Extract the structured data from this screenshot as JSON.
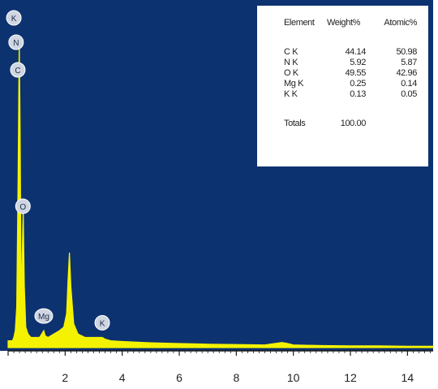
{
  "chart_data": {
    "type": "line",
    "x_ticks": [
      "2",
      "4",
      "6",
      "8",
      "10",
      "12",
      "14"
    ],
    "x_tick_values": [
      2,
      4,
      6,
      8,
      10,
      12,
      14
    ],
    "xlim": [
      0,
      14.9
    ],
    "ylim": [
      0,
      1
    ],
    "colors": {
      "background": "#0d3270",
      "spectrum": "#f4f200",
      "label_bubble": "#cfd6e2"
    },
    "series": [
      {
        "x": [
          0,
          0.15,
          0.2,
          0.25,
          0.3,
          0.35,
          0.39,
          0.42,
          0.46,
          0.5,
          0.53,
          0.57,
          0.62,
          0.66,
          0.7,
          0.8,
          1.0,
          1.1,
          1.25,
          1.3,
          1.4,
          1.6,
          1.8,
          1.95,
          2.05,
          2.1,
          2.15,
          2.2,
          2.3,
          2.45,
          2.7,
          3.0,
          3.3,
          3.4,
          3.6,
          4.0,
          5.0,
          6.0,
          7.0,
          8.0,
          9.0,
          9.6,
          9.8,
          10.0,
          11.0,
          12.0,
          13.0,
          14.0,
          14.9
        ],
        "y": [
          0.02,
          0.02,
          0.03,
          0.05,
          0.12,
          0.5,
          0.92,
          0.65,
          0.12,
          0.3,
          0.41,
          0.18,
          0.06,
          0.05,
          0.04,
          0.03,
          0.03,
          0.03,
          0.05,
          0.035,
          0.03,
          0.04,
          0.05,
          0.06,
          0.1,
          0.2,
          0.28,
          0.18,
          0.07,
          0.04,
          0.03,
          0.03,
          0.03,
          0.025,
          0.02,
          0.018,
          0.014,
          0.012,
          0.01,
          0.009,
          0.008,
          0.015,
          0.012,
          0.008,
          0.006,
          0.005,
          0.005,
          0.004,
          0.004
        ]
      }
    ],
    "peak_labels": [
      {
        "text": "K",
        "x": 0.2
      },
      {
        "text": "N",
        "x": 0.28
      },
      {
        "text": "C",
        "x": 0.34
      },
      {
        "text": "O",
        "x": 0.52
      },
      {
        "text": "Mg",
        "x": 1.25
      },
      {
        "text": "K",
        "x": 3.3
      }
    ],
    "table": {
      "headers": [
        "Element",
        "Weight%",
        "Atomic%"
      ],
      "rows": [
        [
          "C K",
          "44.14",
          "50.98"
        ],
        [
          "N K",
          "5.92",
          "5.87"
        ],
        [
          "O K",
          "49.55",
          "42.96"
        ],
        [
          "Mg K",
          "0.25",
          "0.14"
        ],
        [
          "K K",
          "0.13",
          "0.05"
        ]
      ],
      "totals_label": "Totals",
      "totals_value": "100.00"
    }
  }
}
